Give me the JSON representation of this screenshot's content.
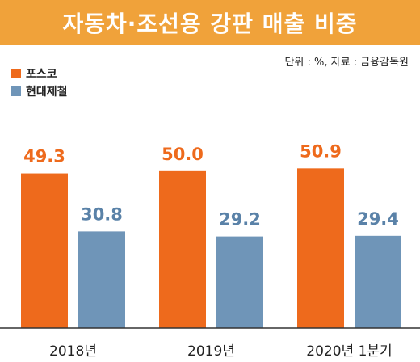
{
  "header": {
    "title": "자동차·조선용 강판 매출 비중",
    "source": "단위 : %, 자료 : 금융감독원"
  },
  "colors": {
    "title_bg": "#f0a23a",
    "series_posco": "#ee6a1c",
    "series_hyundai": "#6f95b8",
    "label_posco": "#ee6a1c",
    "label_hyundai": "#5a82a8"
  },
  "chart_data": {
    "type": "bar",
    "categories": [
      "2018년",
      "2019년",
      "2020년 1분기"
    ],
    "series": [
      {
        "name": "포스코",
        "values": [
          49.3,
          50.0,
          50.9
        ]
      },
      {
        "name": "현대제철",
        "values": [
          30.8,
          29.2,
          29.4
        ]
      }
    ],
    "value_labels": [
      [
        "49.3",
        "50.0",
        "50.9"
      ],
      [
        "30.8",
        "29.2",
        "29.4"
      ]
    ],
    "title": "자동차·조선용 강판 매출 비중",
    "xlabel": "",
    "ylabel": "",
    "ylim": [
      0,
      60
    ],
    "grid": false,
    "legend": "top-left"
  }
}
